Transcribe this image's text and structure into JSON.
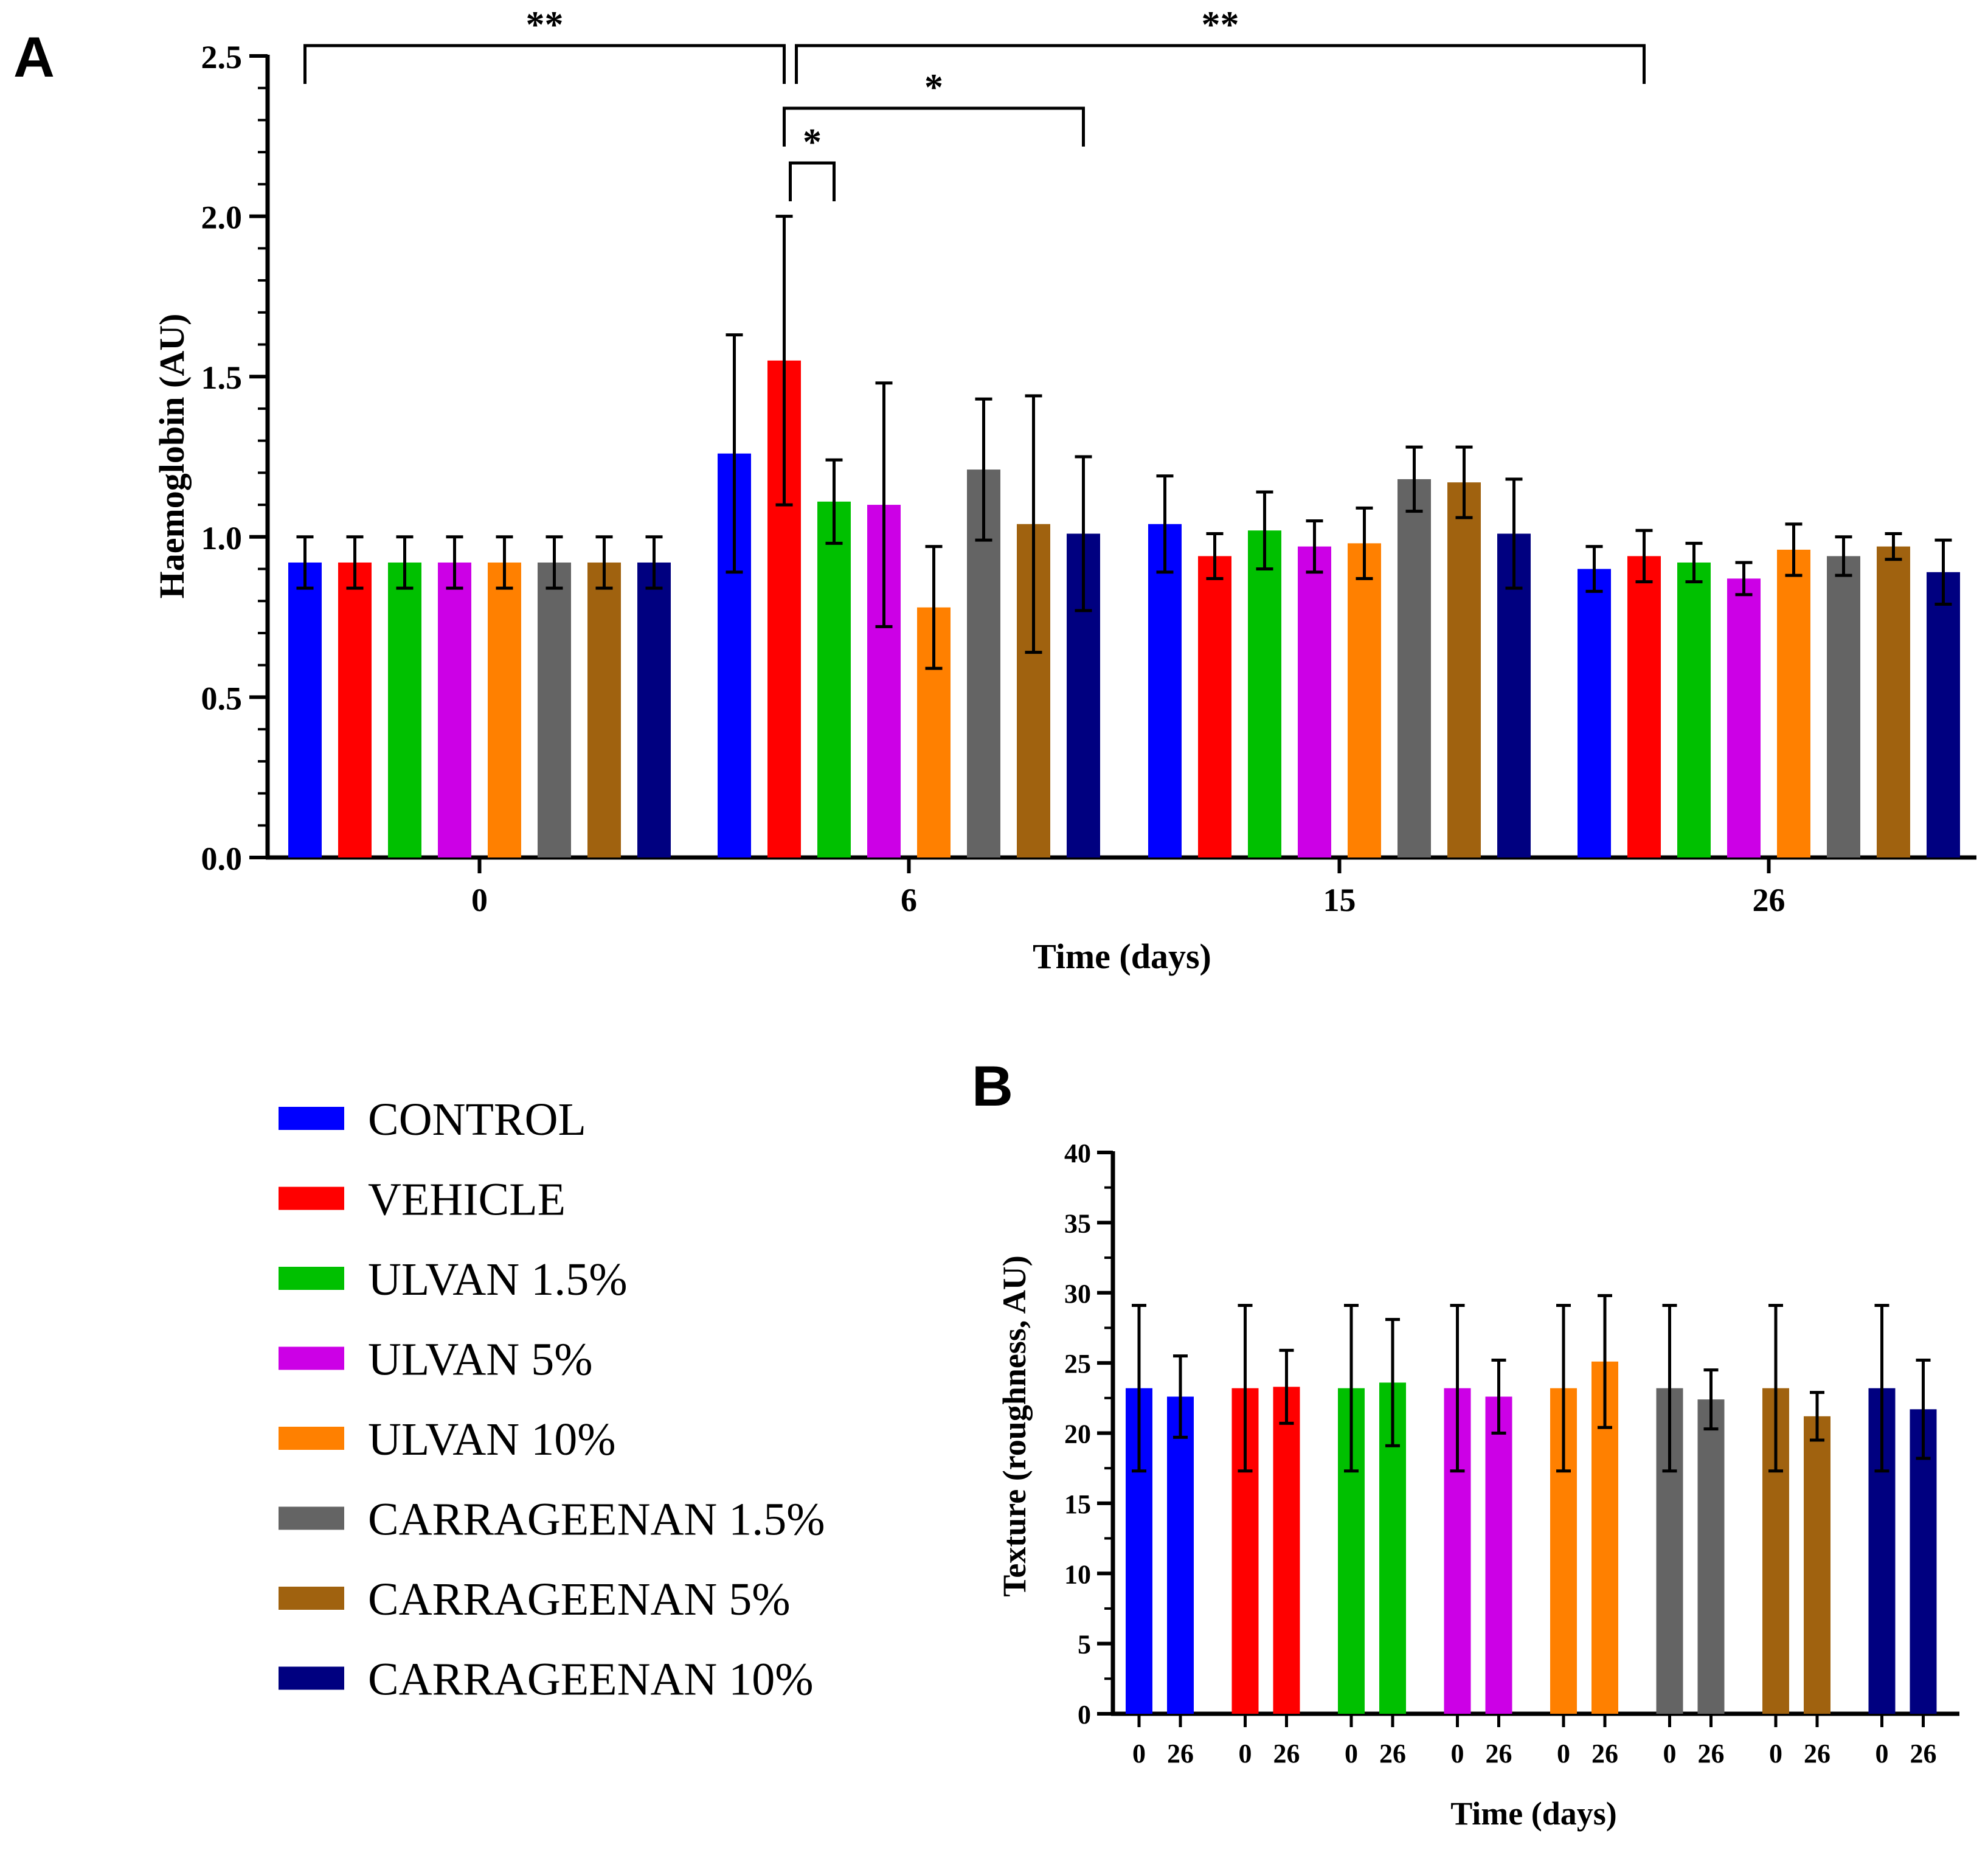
{
  "colors": {
    "CONTROL": "#0000ff",
    "VEHICLE": "#ff0000",
    "ULVAN 1.5%": "#00c000",
    "ULVAN 5%": "#cc00e6",
    "ULVAN 10%": "#ff8000",
    "CARRAGEENAN 1.5%": "#646464",
    "CARRAGEENAN 5%": "#a0620f",
    "CARRAGEENAN 10%": "#000080"
  },
  "legend": {
    "items": [
      "CONTROL",
      "VEHICLE",
      "ULVAN 1.5%",
      "ULVAN 5%",
      "ULVAN 10%",
      "CARRAGEENAN 1.5%",
      "CARRAGEENAN 5%",
      "CARRAGEENAN 10%"
    ]
  },
  "chart_data": [
    {
      "panel": "A",
      "type": "bar",
      "xlabel": "Time (days)",
      "ylabel": "Haemoglobin (AU)",
      "categories": [
        "0",
        "6",
        "15",
        "26"
      ],
      "ylim": [
        0,
        2.5
      ],
      "yticks": [
        "0.0",
        "0.5",
        "1.0",
        "1.5",
        "2.0",
        "2.5"
      ],
      "error_bars": true,
      "series": [
        {
          "name": "CONTROL",
          "values": [
            0.92,
            1.26,
            1.04,
            0.9
          ],
          "errors": [
            0.08,
            0.37,
            0.15,
            0.07
          ]
        },
        {
          "name": "VEHICLE",
          "values": [
            0.92,
            1.55,
            0.94,
            0.94
          ],
          "errors": [
            0.08,
            0.45,
            0.07,
            0.08
          ]
        },
        {
          "name": "ULVAN 1.5%",
          "values": [
            0.92,
            1.11,
            1.02,
            0.92
          ],
          "errors": [
            0.08,
            0.13,
            0.12,
            0.06
          ]
        },
        {
          "name": "ULVAN 5%",
          "values": [
            0.92,
            1.1,
            0.97,
            0.87
          ],
          "errors": [
            0.08,
            0.38,
            0.08,
            0.05
          ]
        },
        {
          "name": "ULVAN 10%",
          "values": [
            0.92,
            0.78,
            0.98,
            0.96
          ],
          "errors": [
            0.08,
            0.19,
            0.11,
            0.08
          ]
        },
        {
          "name": "CARRAGEENAN 1.5%",
          "values": [
            0.92,
            1.21,
            1.18,
            0.94
          ],
          "errors": [
            0.08,
            0.22,
            0.1,
            0.06
          ]
        },
        {
          "name": "CARRAGEENAN 5%",
          "values": [
            0.92,
            1.04,
            1.17,
            0.97
          ],
          "errors": [
            0.08,
            0.4,
            0.11,
            0.04
          ]
        },
        {
          "name": "CARRAGEENAN 10%",
          "values": [
            0.92,
            1.01,
            1.01,
            0.89
          ],
          "errors": [
            0.08,
            0.24,
            0.17,
            0.1
          ]
        }
      ],
      "annotations": [
        {
          "text": "**",
          "from": [
            "0",
            "CONTROL"
          ],
          "to": [
            "6",
            "VEHICLE"
          ]
        },
        {
          "text": "**",
          "from": [
            "6",
            "VEHICLE"
          ],
          "to": [
            "26",
            "VEHICLE"
          ]
        },
        {
          "text": "*",
          "from": [
            "6",
            "VEHICLE"
          ],
          "to": [
            "6",
            "CARRAGEENAN 10%"
          ]
        },
        {
          "text": "*",
          "from": [
            "6",
            "VEHICLE"
          ],
          "to": [
            "6",
            "ULVAN 1.5%"
          ]
        }
      ]
    },
    {
      "panel": "B",
      "type": "bar",
      "xlabel": "Time (days)",
      "ylabel": "Texture (roughness, AU)",
      "tick_labels": [
        "0",
        "26"
      ],
      "ylim": [
        0,
        40
      ],
      "yticks": [
        "0",
        "5",
        "10",
        "15",
        "20",
        "25",
        "30",
        "35",
        "40"
      ],
      "error_bars": true,
      "groups": [
        {
          "name": "CONTROL",
          "values": [
            23.2,
            22.6
          ],
          "errors": [
            5.9,
            2.9
          ]
        },
        {
          "name": "VEHICLE",
          "values": [
            23.2,
            23.3
          ],
          "errors": [
            5.9,
            2.6
          ]
        },
        {
          "name": "ULVAN 1.5%",
          "values": [
            23.2,
            23.6
          ],
          "errors": [
            5.9,
            4.5
          ]
        },
        {
          "name": "ULVAN 5%",
          "values": [
            23.2,
            22.6
          ],
          "errors": [
            5.9,
            2.6
          ]
        },
        {
          "name": "ULVAN 10%",
          "values": [
            23.2,
            25.1
          ],
          "errors": [
            5.9,
            4.7
          ]
        },
        {
          "name": "CARRAGEENAN 1.5%",
          "values": [
            23.2,
            22.4
          ],
          "errors": [
            5.9,
            2.1
          ]
        },
        {
          "name": "CARRAGEENAN 5%",
          "values": [
            23.2,
            21.2
          ],
          "errors": [
            5.9,
            1.7
          ]
        },
        {
          "name": "CARRAGEENAN 10%",
          "values": [
            23.2,
            21.7
          ],
          "errors": [
            5.9,
            3.5
          ]
        }
      ]
    }
  ]
}
